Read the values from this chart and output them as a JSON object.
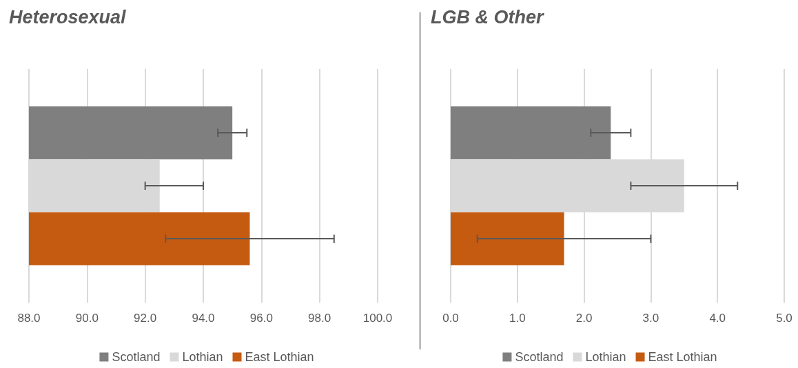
{
  "chart_data": [
    {
      "type": "bar",
      "title": "Heterosexual",
      "orientation": "horizontal",
      "categories": [
        null
      ],
      "series": [
        {
          "name": "Scotland",
          "color": "#7f7f7f",
          "values": [
            95.0
          ],
          "errors": [
            [
              94.5,
              95.5
            ]
          ]
        },
        {
          "name": "Lothian",
          "color": "#d9d9d9",
          "values": [
            92.5
          ],
          "errors": [
            [
              92.0,
              94.0
            ]
          ]
        },
        {
          "name": "East Lothian",
          "color": "#c55a11",
          "values": [
            95.6
          ],
          "errors": [
            [
              92.7,
              98.5
            ]
          ]
        }
      ],
      "xlim": [
        88,
        100
      ],
      "xticks": [
        {
          "value": 88,
          "label": "88.0"
        },
        {
          "value": 90,
          "label": "90.0"
        },
        {
          "value": 92,
          "label": "92.0"
        },
        {
          "value": 94,
          "label": "94.0"
        },
        {
          "value": 96,
          "label": "96.0"
        },
        {
          "value": 98,
          "label": "98.0"
        },
        {
          "value": 100,
          "label": "100.0"
        }
      ],
      "grid": "x",
      "legend": "bottom"
    },
    {
      "type": "bar",
      "title": "LGB & Other",
      "orientation": "horizontal",
      "categories": [
        null
      ],
      "series": [
        {
          "name": "Scotland",
          "color": "#7f7f7f",
          "values": [
            2.4
          ],
          "errors": [
            [
              2.1,
              2.7
            ]
          ]
        },
        {
          "name": "Lothian",
          "color": "#d9d9d9",
          "values": [
            3.5
          ],
          "errors": [
            [
              2.7,
              4.3
            ]
          ]
        },
        {
          "name": "East Lothian",
          "color": "#c55a11",
          "values": [
            1.7
          ],
          "errors": [
            [
              0.4,
              3.0
            ]
          ]
        }
      ],
      "xlim": [
        0,
        5
      ],
      "xticks": [
        {
          "value": 0,
          "label": "0.0"
        },
        {
          "value": 1,
          "label": "1.0"
        },
        {
          "value": 2,
          "label": "2.0"
        },
        {
          "value": 3,
          "label": "3.0"
        },
        {
          "value": 4,
          "label": "4.0"
        },
        {
          "value": 5,
          "label": "5.0"
        }
      ],
      "grid": "x",
      "legend": "bottom"
    }
  ]
}
